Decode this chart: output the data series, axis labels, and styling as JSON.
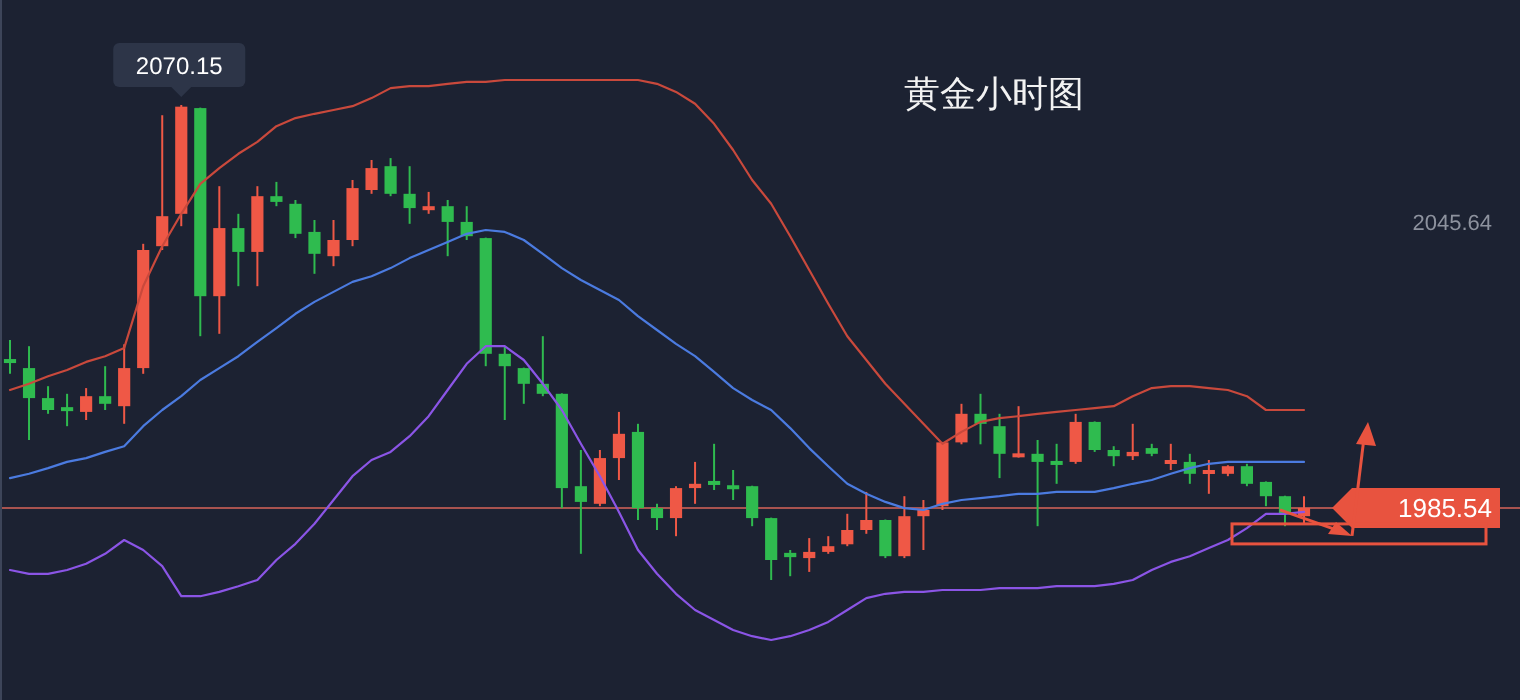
{
  "chart_data": {
    "type": "candlestick",
    "title": "黄金小时图",
    "categories": [
      null,
      null,
      null,
      null,
      null,
      null,
      null,
      null,
      null,
      null,
      null,
      null,
      null,
      null,
      null,
      null,
      null,
      null,
      null,
      null,
      null,
      null,
      null,
      null,
      null,
      null,
      null,
      null,
      null,
      null,
      null,
      null,
      null,
      null,
      null,
      null,
      null,
      null,
      null,
      null,
      null,
      null,
      null,
      null,
      null,
      null,
      null,
      null,
      null,
      null,
      null,
      null,
      null,
      null,
      null,
      null,
      null,
      null,
      null,
      null,
      null,
      null,
      null,
      null,
      null,
      null,
      null,
      null,
      null
    ],
    "ohlc": [
      [
        2016.8,
        2020.8,
        2013.7,
        2016.0
      ],
      [
        2014.9,
        2019.5,
        1999.8,
        2008.6
      ],
      [
        2008.6,
        2011.1,
        2005.3,
        2006.1
      ],
      [
        2006.7,
        2009.5,
        2002.7,
        2005.9
      ],
      [
        2005.7,
        2010.7,
        2004.0,
        2009.0
      ],
      [
        2009.0,
        2015.3,
        2006.1,
        2007.4
      ],
      [
        2006.9,
        2019.9,
        2003.2,
        2014.9
      ],
      [
        2014.9,
        2041.0,
        2013.7,
        2039.7
      ],
      [
        2040.5,
        2068.0,
        2039.7,
        2046.8
      ],
      [
        2047.3,
        2070.15,
        2044.7,
        2069.8
      ],
      [
        2069.5,
        2069.6,
        2021.6,
        2030.0
      ],
      [
        2030.0,
        2053.1,
        2022.1,
        2044.3
      ],
      [
        2044.3,
        2047.3,
        2032.1,
        2039.3
      ],
      [
        2039.3,
        2053.1,
        2032.1,
        2051.0
      ],
      [
        2051.0,
        2054.0,
        2048.9,
        2049.8
      ],
      [
        2049.4,
        2050.2,
        2042.2,
        2043.1
      ],
      [
        2043.5,
        2046.0,
        2034.7,
        2038.9
      ],
      [
        2038.4,
        2046.0,
        2036.3,
        2041.8
      ],
      [
        2041.8,
        2054.4,
        2040.5,
        2052.7
      ],
      [
        2052.3,
        2058.6,
        2051.5,
        2056.9
      ],
      [
        2057.3,
        2059.0,
        2051.0,
        2051.5
      ],
      [
        2051.5,
        2057.3,
        2045.2,
        2048.5
      ],
      [
        2048.1,
        2051.9,
        2047.3,
        2048.9
      ],
      [
        2048.9,
        2050.2,
        2038.4,
        2045.6
      ],
      [
        2045.6,
        2048.9,
        2041.8,
        2042.6
      ],
      [
        2042.2,
        2042.3,
        2015.3,
        2017.9
      ],
      [
        2017.9,
        2019.5,
        2004.0,
        2015.3
      ],
      [
        2014.9,
        2015.0,
        2007.4,
        2011.6
      ],
      [
        2011.6,
        2021.6,
        2009.0,
        2009.5
      ],
      [
        2009.5,
        2009.6,
        1985.5,
        1989.7
      ],
      [
        1990.1,
        1997.7,
        1975.9,
        1986.8
      ],
      [
        1986.4,
        1997.7,
        1985.9,
        1996.0
      ],
      [
        1996.0,
        2005.7,
        1991.4,
        2001.1
      ],
      [
        2001.5,
        2003.2,
        1983.0,
        1985.5
      ],
      [
        1985.5,
        1986.4,
        1980.9,
        1983.4
      ],
      [
        1983.4,
        1990.1,
        1979.6,
        1989.7
      ],
      [
        1989.7,
        1995.2,
        1986.4,
        1990.6
      ],
      [
        1991.2,
        1999.0,
        1989.3,
        1990.4
      ],
      [
        1990.3,
        1993.5,
        1987.2,
        1989.5
      ],
      [
        1990.1,
        1990.2,
        1981.7,
        1983.4
      ],
      [
        1983.4,
        1983.5,
        1970.4,
        1974.6
      ],
      [
        1976.1,
        1976.7,
        1971.2,
        1975.2
      ],
      [
        1975.0,
        1979.2,
        1972.1,
        1976.3
      ],
      [
        1976.3,
        1979.6,
        1975.9,
        1977.5
      ],
      [
        1977.9,
        1984.3,
        1977.5,
        1980.9
      ],
      [
        1980.9,
        1988.9,
        1980.1,
        1983.0
      ],
      [
        1983.0,
        1983.1,
        1975.0,
        1975.4
      ],
      [
        1975.4,
        1988.0,
        1975.0,
        1983.8
      ],
      [
        1983.8,
        1987.2,
        1976.7,
        1985.1
      ],
      [
        1985.9,
        1999.4,
        1985.1,
        1999.3
      ],
      [
        1999.3,
        2007.4,
        1998.9,
        2005.3
      ],
      [
        2005.3,
        2009.5,
        1998.9,
        2003.2
      ],
      [
        2002.7,
        2005.3,
        1991.8,
        1996.9
      ],
      [
        1996.2,
        2006.9,
        1996.1,
        1997.0
      ],
      [
        1996.9,
        1999.8,
        1981.7,
        1995.2
      ],
      [
        1995.4,
        1999.0,
        1990.6,
        1994.6
      ],
      [
        1995.2,
        2005.3,
        1994.8,
        2003.6
      ],
      [
        2003.6,
        2003.7,
        1997.3,
        1997.7
      ],
      [
        1997.7,
        1998.5,
        1994.3,
        1996.4
      ],
      [
        1996.4,
        2003.2,
        1995.6,
        1997.3
      ],
      [
        1998.1,
        1999.0,
        1996.4,
        1996.9
      ],
      [
        1994.8,
        1999.0,
        1993.5,
        1995.6
      ],
      [
        1995.2,
        1996.9,
        1990.6,
        1992.7
      ],
      [
        1992.7,
        1995.6,
        1988.5,
        1993.5
      ],
      [
        1992.7,
        1994.5,
        1992.2,
        1994.3
      ],
      [
        1994.3,
        1994.8,
        1990.1,
        1990.6
      ],
      [
        1991.0,
        1991.1,
        1985.9,
        1988.0
      ],
      [
        1988.0,
        1988.1,
        1981.7,
        1984.3
      ],
      [
        1983.8,
        1988.0,
        1982.2,
        1985.54
      ]
    ],
    "series": [
      {
        "type": "line",
        "color": "#c9493c",
        "values": [
          2010.3,
          2011.6,
          2013.2,
          2014.5,
          2016.2,
          2017.4,
          2019.1,
          2032.1,
          2040.5,
          2047.3,
          2053.6,
          2056.9,
          2059.9,
          2062.4,
          2065.7,
          2067.4,
          2068.3,
          2069.1,
          2069.9,
          2071.6,
          2073.7,
          2074.1,
          2074.1,
          2074.6,
          2075.0,
          2075.0,
          2075.4,
          2075.4,
          2075.4,
          2075.4,
          2075.4,
          2075.4,
          2075.4,
          2075.4,
          2074.6,
          2072.9,
          2070.4,
          2066.2,
          2060.7,
          2054.4,
          2049.4,
          2042.6,
          2035.5,
          2028.4,
          2021.6,
          2016.6,
          2011.6,
          2007.4,
          2003.2,
          1999.0,
          2001.5,
          2003.6,
          2004.4,
          2004.8,
          2005.3,
          2005.7,
          2006.1,
          2006.5,
          2006.9,
          2009.0,
          2010.7,
          2011.1,
          2011.1,
          2010.7,
          2010.3,
          2009.0,
          2006.1,
          2006.1,
          2006.1
        ]
      },
      {
        "type": "line",
        "color": "#4b7be0",
        "values": [
          1991.8,
          1992.7,
          1993.9,
          1995.2,
          1996.0,
          1997.3,
          1998.5,
          2002.7,
          2006.1,
          2009.0,
          2012.4,
          2014.9,
          2017.4,
          2020.4,
          2023.3,
          2026.3,
          2028.8,
          2030.9,
          2033.0,
          2034.2,
          2035.9,
          2038.0,
          2039.7,
          2041.4,
          2043.1,
          2043.9,
          2043.5,
          2041.8,
          2038.9,
          2035.9,
          2033.4,
          2031.3,
          2029.2,
          2025.8,
          2022.9,
          2020.0,
          2017.4,
          2014.1,
          2010.7,
          2008.2,
          2006.1,
          2002.3,
          1998.1,
          1994.3,
          1990.6,
          1988.5,
          1986.8,
          1985.5,
          1985.1,
          1986.4,
          1987.2,
          1987.6,
          1988.0,
          1988.5,
          1988.5,
          1988.9,
          1988.9,
          1988.9,
          1989.7,
          1990.6,
          1991.4,
          1992.7,
          1993.9,
          1994.8,
          1995.2,
          1995.2,
          1995.2,
          1995.2,
          1995.2
        ]
      },
      {
        "type": "line",
        "color": "#8b55e6",
        "values": [
          1972.5,
          1971.7,
          1971.7,
          1972.5,
          1973.8,
          1975.9,
          1978.8,
          1976.7,
          1973.3,
          1967.0,
          1967.0,
          1967.9,
          1969.1,
          1970.4,
          1974.6,
          1978.0,
          1982.2,
          1987.2,
          1992.2,
          1995.6,
          1997.3,
          2000.6,
          2004.8,
          2010.3,
          2015.8,
          2019.5,
          2019.5,
          2016.6,
          2011.6,
          2006.1,
          1999.0,
          1992.2,
          1984.7,
          1976.7,
          1971.7,
          1967.5,
          1964.1,
          1962.0,
          1959.9,
          1958.6,
          1957.8,
          1958.6,
          1959.9,
          1961.6,
          1964.1,
          1966.6,
          1967.5,
          1967.9,
          1967.9,
          1968.3,
          1968.3,
          1968.3,
          1968.7,
          1968.7,
          1968.7,
          1969.1,
          1969.1,
          1969.1,
          1969.6,
          1970.4,
          1972.5,
          1974.2,
          1975.4,
          1977.1,
          1978.8,
          1981.3,
          1984.3,
          1984.3,
          1984.7
        ]
      }
    ],
    "ylim": [
      1945.2,
      2092.2
    ],
    "yticks": [
      1985.54,
      2045.64
    ],
    "ref_lines": [
      {
        "axis": "y",
        "value": 1985.54,
        "color": "#a8534f"
      }
    ],
    "annotations": [
      {
        "text": "2070.15",
        "y": 2070.15
      }
    ]
  }
}
